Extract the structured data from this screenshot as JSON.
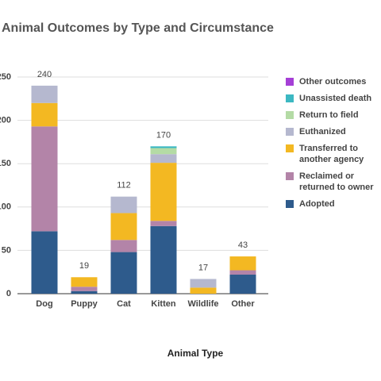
{
  "chart_data": {
    "type": "stacked_bar",
    "title": "Animal Outcomes by Type and Circumstance",
    "x_label": "Animal Type",
    "categories": [
      "Dog",
      "Puppy",
      "Cat",
      "Kitten",
      "Wildlife",
      "Other"
    ],
    "totals": [
      240,
      19,
      112,
      170,
      17,
      43
    ],
    "series": [
      {
        "name": "Adopted",
        "color": "#2e5b8c",
        "values": [
          72,
          3,
          48,
          78,
          0,
          22
        ]
      },
      {
        "name": "Reclaimed or returned to owner",
        "color": "#b384a8",
        "values": [
          121,
          5,
          14,
          6,
          0,
          5
        ]
      },
      {
        "name": "Transferred to another agency",
        "color": "#f3b822",
        "values": [
          27,
          11,
          31,
          67,
          7,
          16
        ]
      },
      {
        "name": "Euthanized",
        "color": "#b5b8cf",
        "values": [
          20,
          0,
          19,
          10,
          10,
          0
        ]
      },
      {
        "name": "Return to field",
        "color": "#b4dba5",
        "values": [
          0,
          0,
          0,
          7,
          0,
          0
        ]
      },
      {
        "name": "Unassisted death",
        "color": "#3cb8c2",
        "values": [
          0,
          0,
          0,
          2,
          0,
          0
        ]
      },
      {
        "name": "Other outcomes",
        "color": "#a53fd6",
        "values": [
          0,
          0,
          0,
          0,
          0,
          0
        ]
      }
    ],
    "ylim": [
      0,
      250
    ],
    "yticks": [
      0,
      50,
      100,
      150,
      200,
      250
    ],
    "grid": true,
    "legend": "right"
  }
}
